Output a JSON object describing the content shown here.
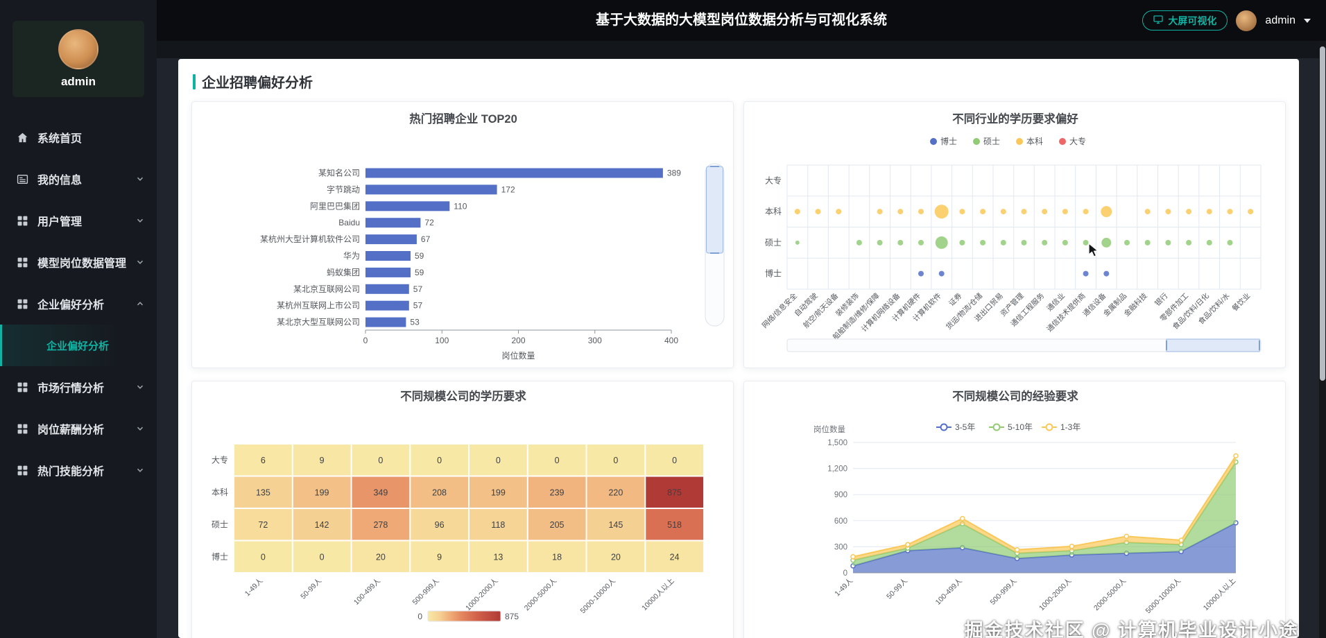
{
  "header": {
    "title": "基于大数据的大模型岗位数据分析与可视化系统",
    "big_screen_button": "大屏可视化",
    "user": "admin"
  },
  "sidebar": {
    "username": "admin",
    "items": [
      {
        "key": "home",
        "label": "系统首页",
        "icon": "home-icon",
        "expandable": false
      },
      {
        "key": "my-info",
        "label": "我的信息",
        "icon": "profile-icon",
        "expandable": true
      },
      {
        "key": "user-mgmt",
        "label": "用户管理",
        "icon": "grid-icon",
        "expandable": true
      },
      {
        "key": "model-data",
        "label": "模型岗位数据管理",
        "icon": "grid-icon",
        "expandable": true
      },
      {
        "key": "enterprise-pref",
        "label": "企业偏好分析",
        "icon": "grid-icon",
        "expandable": true,
        "expanded": true,
        "children": [
          {
            "key": "enterprise-pref-analysis",
            "label": "企业偏好分析",
            "active": true
          }
        ]
      },
      {
        "key": "market",
        "label": "市场行情分析",
        "icon": "grid-icon",
        "expandable": true
      },
      {
        "key": "salary",
        "label": "岗位薪酬分析",
        "icon": "grid-icon",
        "expandable": true
      },
      {
        "key": "skills",
        "label": "热门技能分析",
        "icon": "grid-icon",
        "expandable": true
      }
    ]
  },
  "page": {
    "section_title": "企业招聘偏好分析",
    "watermark": "掘金技术社区 @ 计算机毕业设计小途"
  },
  "colors": {
    "accent": "#10b3a3",
    "blue": "#5470c6",
    "green": "#91cc75",
    "yellow": "#fac858",
    "red": "#ee6666"
  },
  "chart_data": [
    {
      "type": "bar",
      "title": "热门招聘企业 TOP20",
      "categories": [
        "某知名公司",
        "字节跳动",
        "阿里巴巴集团",
        "Baidu",
        "某杭州大型计算机软件公司",
        "华为",
        "蚂蚁集团",
        "某北京互联网公司",
        "某杭州互联网上市公司",
        "某北京大型互联网公司"
      ],
      "values": [
        389,
        172,
        110,
        72,
        67,
        59,
        59,
        57,
        57,
        53
      ],
      "xlabel": "岗位数量",
      "xticks": [
        0,
        100,
        200,
        300,
        400
      ],
      "xlim": [
        0,
        400
      ],
      "bar_color": "#5470c6",
      "datazoom_vertical": true
    },
    {
      "type": "scatter",
      "title": "不同行业的学历要求偏好",
      "legend": [
        {
          "name": "博士",
          "color": "#5470c6"
        },
        {
          "name": "硕士",
          "color": "#91cc75"
        },
        {
          "name": "本科",
          "color": "#fac858"
        },
        {
          "name": "大专",
          "color": "#ee6666"
        }
      ],
      "y_categories": [
        "大专",
        "本科",
        "硕士",
        "博士"
      ],
      "x_categories": [
        "网络/信息安全",
        "自动驾驶",
        "航空/航天设备",
        "装修装饰",
        "船舶制造/维修/保障",
        "计算机网络设备",
        "计算机硬件",
        "计算机软件",
        "证券",
        "货运/物流/仓储",
        "进出口贸易",
        "资产管理",
        "通信工程服务",
        "通信业",
        "通信技术提供商",
        "通信设备",
        "金属制品",
        "金融科技",
        "银行",
        "零部件加工",
        "食品/饮料/日化",
        "食品/饮料/水",
        "餐饮业"
      ],
      "series": [
        {
          "name": "本科",
          "color": "#fac858",
          "row": 1,
          "points": [
            [
              0,
              4
            ],
            [
              1,
              4
            ],
            [
              2,
              4
            ],
            [
              4,
              4
            ],
            [
              5,
              4
            ],
            [
              6,
              4
            ],
            [
              7,
              10
            ],
            [
              8,
              4
            ],
            [
              9,
              4
            ],
            [
              10,
              4
            ],
            [
              11,
              4
            ],
            [
              12,
              4
            ],
            [
              13,
              4
            ],
            [
              14,
              4
            ],
            [
              15,
              8
            ],
            [
              17,
              4
            ],
            [
              18,
              4
            ],
            [
              19,
              4
            ],
            [
              20,
              4
            ],
            [
              21,
              4
            ],
            [
              22,
              4
            ]
          ]
        },
        {
          "name": "硕士",
          "color": "#91cc75",
          "row": 2,
          "points": [
            [
              0,
              3
            ],
            [
              3,
              4
            ],
            [
              4,
              4
            ],
            [
              5,
              4
            ],
            [
              6,
              4
            ],
            [
              7,
              9
            ],
            [
              8,
              4
            ],
            [
              9,
              4
            ],
            [
              10,
              4
            ],
            [
              11,
              4
            ],
            [
              12,
              4
            ],
            [
              13,
              4
            ],
            [
              14,
              4
            ],
            [
              15,
              7
            ],
            [
              16,
              4
            ],
            [
              17,
              4
            ],
            [
              18,
              4
            ],
            [
              19,
              4
            ],
            [
              20,
              4
            ],
            [
              21,
              4
            ]
          ]
        },
        {
          "name": "博士",
          "color": "#5470c6",
          "row": 3,
          "points": [
            [
              6,
              4
            ],
            [
              7,
              4
            ],
            [
              14,
              4
            ],
            [
              15,
              4
            ]
          ]
        },
        {
          "name": "大专",
          "color": "#ee6666",
          "row": 0,
          "points": []
        }
      ],
      "datazoom_horizontal": true
    },
    {
      "type": "heatmap",
      "title": "不同规模公司的学历要求",
      "x_categories": [
        "1-49人",
        "50-99人",
        "100-499人",
        "500-999人",
        "1000-2000人",
        "2000-5000人",
        "5000-10000人",
        "10000人以上"
      ],
      "y_categories": [
        "大专",
        "本科",
        "硕士",
        "博士"
      ],
      "rows": [
        [
          6,
          9,
          0,
          0,
          0,
          0,
          0,
          0
        ],
        [
          135,
          199,
          349,
          208,
          199,
          239,
          220,
          875
        ],
        [
          72,
          142,
          278,
          96,
          118,
          205,
          145,
          518
        ],
        [
          0,
          0,
          20,
          9,
          13,
          18,
          20,
          24
        ]
      ],
      "visual_min": 0,
      "visual_max": 875,
      "gradient_stops": [
        [
          0,
          "#f8e8a6"
        ],
        [
          0.17,
          "#f5cf92"
        ],
        [
          0.29,
          "#f0b07b"
        ],
        [
          0.46,
          "#e4875f"
        ],
        [
          0.69,
          "#d05f4a"
        ],
        [
          1,
          "#b03a35"
        ]
      ]
    },
    {
      "type": "area",
      "title": "不同规模公司的经验要求",
      "ylabel": "岗位数量",
      "legend": [
        {
          "name": "3-5年",
          "color": "#5470c6"
        },
        {
          "name": "5-10年",
          "color": "#91cc75"
        },
        {
          "name": "1-3年",
          "color": "#fac858"
        }
      ],
      "categories": [
        "1-49人",
        "50-99人",
        "100-499人",
        "500-999人",
        "1000-2000人",
        "2000-5000人",
        "5000-10000人",
        "10000人以上"
      ],
      "series": [
        {
          "name": "3-5年",
          "color": "#5470c6",
          "values": [
            80,
            255,
            290,
            165,
            205,
            225,
            245,
            575
          ]
        },
        {
          "name": "5-10年",
          "color": "#91cc75",
          "values": [
            65,
            30,
            275,
            60,
            50,
            125,
            80,
            700
          ]
        },
        {
          "name": "1-3年",
          "color": "#fac858",
          "values": [
            40,
            40,
            60,
            40,
            50,
            70,
            50,
            70
          ]
        }
      ],
      "yticks": [
        0,
        300,
        600,
        900,
        1200,
        1500
      ],
      "ytick_labels": [
        "0",
        "300",
        "600",
        "900",
        "1,200",
        "1,500"
      ],
      "ylim": [
        0,
        1500
      ]
    }
  ]
}
